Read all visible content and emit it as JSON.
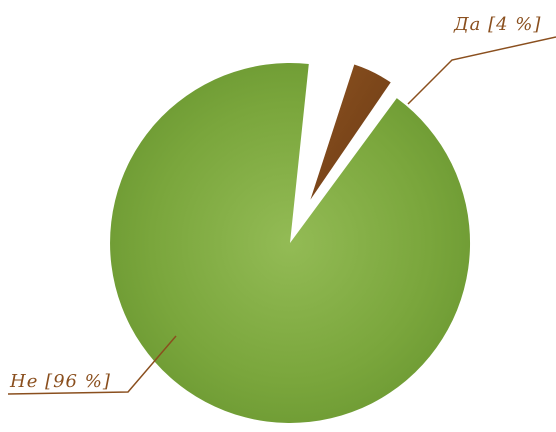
{
  "chart_data": {
    "type": "pie",
    "title": "",
    "slices": [
      {
        "label": "Не [96 %]",
        "value": 96,
        "color": "#7da83f"
      },
      {
        "label": "Да [4 %]",
        "value": 4,
        "color": "#7a4418"
      }
    ],
    "exploded_slice": "Да [4 %]",
    "label_color": "#8a4f1e",
    "leader_line_color": "#8a4f1e"
  }
}
